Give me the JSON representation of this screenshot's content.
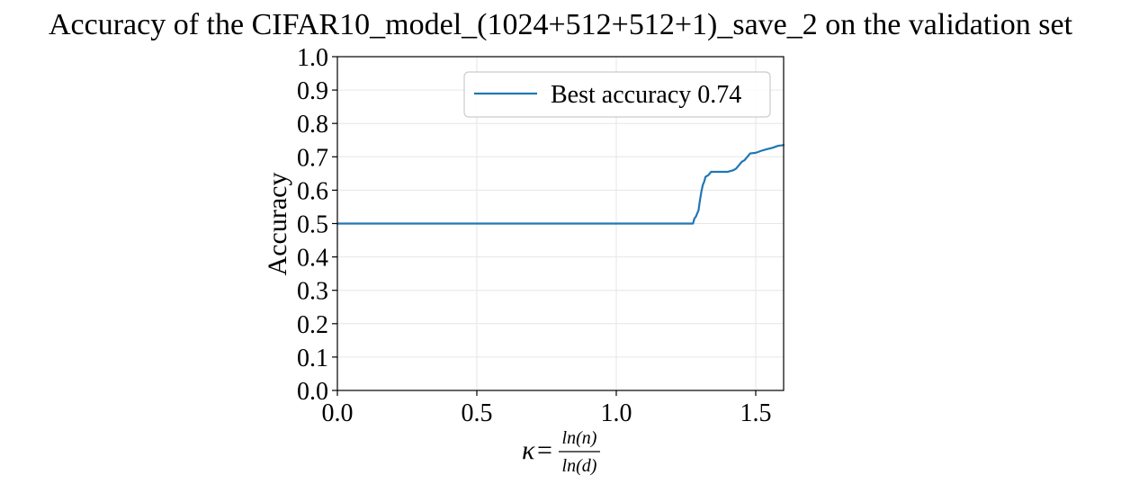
{
  "chart_data": {
    "type": "line",
    "title": "Accuracy of the CIFAR10_model_(1024+512+512+1)_save_2 on the validation set",
    "ylabel": "Accuracy",
    "xlabel": {
      "kappa": "κ",
      "equals": "=",
      "numerator": "ln(n)",
      "denominator": "ln(d)"
    },
    "xlim": [
      0.0,
      1.6
    ],
    "ylim": [
      0.0,
      1.0
    ],
    "x_ticks": [
      0.0,
      0.5,
      1.0,
      1.5
    ],
    "x_tick_labels": [
      "0.0",
      "0.5",
      "1.0",
      "1.5"
    ],
    "y_ticks": [
      0.0,
      0.1,
      0.2,
      0.3,
      0.4,
      0.5,
      0.6,
      0.7,
      0.8,
      0.9,
      1.0
    ],
    "y_tick_labels": [
      "0.0",
      "0.1",
      "0.2",
      "0.3",
      "0.4",
      "0.5",
      "0.6",
      "0.7",
      "0.8",
      "0.9",
      "1.0"
    ],
    "grid": true,
    "legend_position": "top-right",
    "series": [
      {
        "name": "Best accuracy 0.74",
        "color": "#1f77b4",
        "x": [
          0.0,
          1.27,
          1.275,
          1.28,
          1.285,
          1.29,
          1.295,
          1.3,
          1.305,
          1.31,
          1.315,
          1.32,
          1.33,
          1.34,
          1.35,
          1.36,
          1.38,
          1.4,
          1.42,
          1.43,
          1.44,
          1.45,
          1.46,
          1.47,
          1.48,
          1.5,
          1.52,
          1.54,
          1.56,
          1.58,
          1.6
        ],
        "y": [
          0.5,
          0.5,
          0.5,
          0.515,
          0.52,
          0.53,
          0.54,
          0.57,
          0.595,
          0.615,
          0.625,
          0.64,
          0.645,
          0.655,
          0.655,
          0.655,
          0.655,
          0.655,
          0.66,
          0.665,
          0.675,
          0.685,
          0.69,
          0.7,
          0.71,
          0.712,
          0.718,
          0.723,
          0.727,
          0.733,
          0.735
        ]
      }
    ]
  }
}
